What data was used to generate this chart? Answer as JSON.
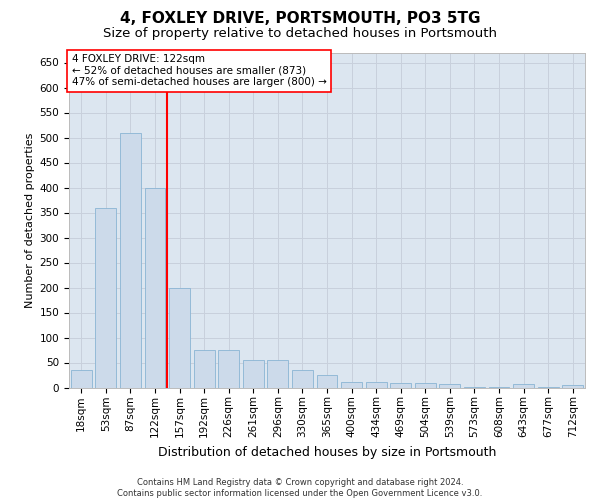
{
  "title": "4, FOXLEY DRIVE, PORTSMOUTH, PO3 5TG",
  "subtitle": "Size of property relative to detached houses in Portsmouth",
  "xlabel": "Distribution of detached houses by size in Portsmouth",
  "ylabel": "Number of detached properties",
  "footer_line1": "Contains HM Land Registry data © Crown copyright and database right 2024.",
  "footer_line2": "Contains public sector information licensed under the Open Government Licence v3.0.",
  "annotation_line1": "4 FOXLEY DRIVE: 122sqm",
  "annotation_line2": "← 52% of detached houses are smaller (873)",
  "annotation_line3": "47% of semi-detached houses are larger (800) →",
  "bar_labels": [
    "18sqm",
    "53sqm",
    "87sqm",
    "122sqm",
    "157sqm",
    "192sqm",
    "226sqm",
    "261sqm",
    "296sqm",
    "330sqm",
    "365sqm",
    "400sqm",
    "434sqm",
    "469sqm",
    "504sqm",
    "539sqm",
    "573sqm",
    "608sqm",
    "643sqm",
    "677sqm",
    "712sqm"
  ],
  "bar_values": [
    35,
    360,
    510,
    400,
    200,
    75,
    75,
    55,
    55,
    35,
    25,
    12,
    12,
    10,
    10,
    8,
    1,
    1,
    8,
    1,
    5
  ],
  "bar_color": "#ccdaea",
  "bar_edgecolor": "#8ab4d4",
  "redline_index": 3,
  "ylim": [
    0,
    670
  ],
  "yticks": [
    0,
    50,
    100,
    150,
    200,
    250,
    300,
    350,
    400,
    450,
    500,
    550,
    600,
    650
  ],
  "grid_color": "#c8d0dc",
  "background_color": "#dce6f0",
  "title_fontsize": 11,
  "subtitle_fontsize": 9.5,
  "xlabel_fontsize": 9,
  "ylabel_fontsize": 8,
  "tick_fontsize": 7.5,
  "annotation_fontsize": 7.5,
  "footer_fontsize": 6
}
